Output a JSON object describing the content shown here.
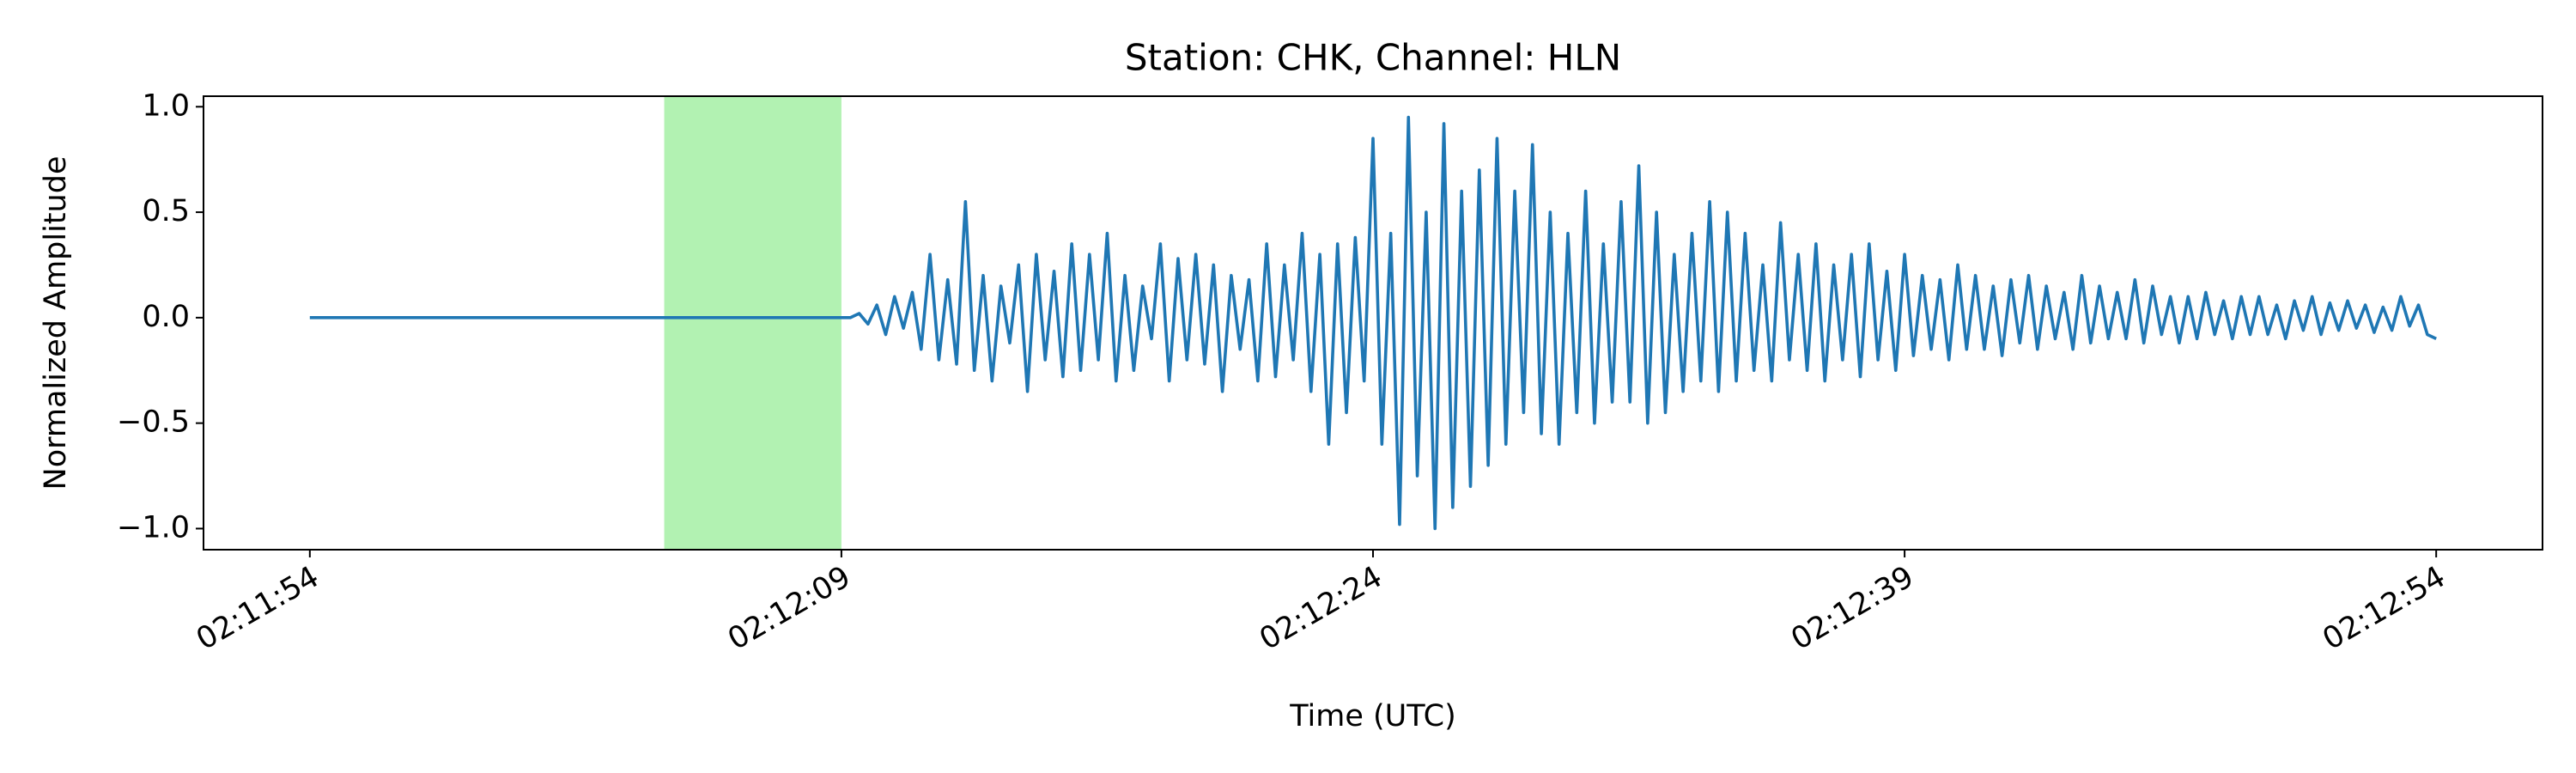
{
  "chart_data": {
    "type": "line",
    "title": "Station: CHK, Channel: HLN",
    "x_label": "Time (UTC)",
    "y_label": "Normalized Amplitude",
    "color": "#1f77b4",
    "span": {
      "xmin": 7924,
      "xmax": 7929,
      "color": "#b2f2b2"
    },
    "xlim": [
      7911,
      7977
    ],
    "xticks": [
      {
        "value": 7914,
        "label": "02:11:54"
      },
      {
        "value": 7929,
        "label": "02:12:09"
      },
      {
        "value": 7944,
        "label": "02:12:24"
      },
      {
        "value": 7959,
        "label": "02:12:39"
      },
      {
        "value": 7974,
        "label": "02:12:54"
      }
    ],
    "ylim": [
      -1.1,
      1.05
    ],
    "yticks": [
      {
        "value": -1,
        "label": "−1.0"
      },
      {
        "value": -0.5,
        "label": "−0.5"
      },
      {
        "value": 0,
        "label": "0.0"
      },
      0.5,
      {
        "value": 1,
        "label": "1.0"
      }
    ],
    "grid": false,
    "x": [
      7914,
      7914.25,
      7914.5,
      7914.75,
      7915,
      7915.25,
      7915.5,
      7915.75,
      7916,
      7916.25,
      7916.5,
      7916.75,
      7917,
      7917.25,
      7917.5,
      7917.75,
      7918,
      7918.25,
      7918.5,
      7918.75,
      7919,
      7919.25,
      7919.5,
      7919.75,
      7920,
      7920.25,
      7920.5,
      7920.75,
      7921,
      7921.25,
      7921.5,
      7921.75,
      7922,
      7922.25,
      7922.5,
      7922.75,
      7923,
      7923.25,
      7923.5,
      7923.75,
      7924,
      7924.25,
      7924.5,
      7924.75,
      7925,
      7925.25,
      7925.5,
      7925.75,
      7926,
      7926.25,
      7926.5,
      7926.75,
      7927,
      7927.25,
      7927.5,
      7927.75,
      7928,
      7928.25,
      7928.5,
      7928.75,
      7929,
      7929.25,
      7929.5,
      7929.75,
      7930,
      7930.25,
      7930.5,
      7930.75,
      7931,
      7931.25,
      7931.5,
      7931.75,
      7932,
      7932.25,
      7932.5,
      7932.75,
      7933,
      7933.25,
      7933.5,
      7933.75,
      7934,
      7934.25,
      7934.5,
      7934.75,
      7935,
      7935.25,
      7935.5,
      7935.75,
      7936,
      7936.25,
      7936.5,
      7936.75,
      7937,
      7937.25,
      7937.5,
      7937.75,
      7938,
      7938.25,
      7938.5,
      7938.75,
      7939,
      7939.25,
      7939.5,
      7939.75,
      7940,
      7940.25,
      7940.5,
      7940.75,
      7941,
      7941.25,
      7941.5,
      7941.75,
      7942,
      7942.25,
      7942.5,
      7942.75,
      7943,
      7943.25,
      7943.5,
      7943.75,
      7944,
      7944.25,
      7944.5,
      7944.75,
      7945,
      7945.25,
      7945.5,
      7945.75,
      7946,
      7946.25,
      7946.5,
      7946.75,
      7947,
      7947.25,
      7947.5,
      7947.75,
      7948,
      7948.25,
      7948.5,
      7948.75,
      7949,
      7949.25,
      7949.5,
      7949.75,
      7950,
      7950.25,
      7950.5,
      7950.75,
      7951,
      7951.25,
      7951.5,
      7951.75,
      7952,
      7952.25,
      7952.5,
      7952.75,
      7953,
      7953.25,
      7953.5,
      7953.75,
      7954,
      7954.25,
      7954.5,
      7954.75,
      7955,
      7955.25,
      7955.5,
      7955.75,
      7956,
      7956.25,
      7956.5,
      7956.75,
      7957,
      7957.25,
      7957.5,
      7957.75,
      7958,
      7958.25,
      7958.5,
      7958.75,
      7959,
      7959.25,
      7959.5,
      7959.75,
      7960,
      7960.25,
      7960.5,
      7960.75,
      7961,
      7961.25,
      7961.5,
      7961.75,
      7962,
      7962.25,
      7962.5,
      7962.75,
      7963,
      7963.25,
      7963.5,
      7963.75,
      7964,
      7964.25,
      7964.5,
      7964.75,
      7965,
      7965.25,
      7965.5,
      7965.75,
      7966,
      7966.25,
      7966.5,
      7966.75,
      7967,
      7967.25,
      7967.5,
      7967.75,
      7968,
      7968.25,
      7968.5,
      7968.75,
      7969,
      7969.25,
      7969.5,
      7969.75,
      7970,
      7970.25,
      7970.5,
      7970.75,
      7971,
      7971.25,
      7971.5,
      7971.75,
      7972,
      7972.25,
      7972.5,
      7972.75,
      7973,
      7973.25,
      7973.5,
      7973.75,
      7974
    ],
    "values": [
      0,
      0,
      0,
      0,
      0,
      0,
      0,
      0,
      0,
      0,
      0,
      0,
      0,
      0,
      0,
      0,
      0,
      0,
      0,
      0,
      0,
      0,
      0,
      0,
      0,
      0,
      0,
      0,
      0,
      0,
      0,
      0,
      0,
      0,
      0,
      0,
      0,
      0,
      0,
      0,
      0,
      0,
      0,
      0,
      0,
      0,
      0,
      0,
      0,
      0,
      0,
      0,
      0,
      0,
      0,
      0,
      0,
      0,
      0,
      0,
      0,
      0,
      0.02,
      -0.03,
      0.06,
      -0.08,
      0.1,
      -0.05,
      0.12,
      -0.15,
      0.3,
      -0.2,
      0.18,
      -0.22,
      0.55,
      -0.25,
      0.2,
      -0.3,
      0.15,
      -0.12,
      0.25,
      -0.35,
      0.3,
      -0.2,
      0.22,
      -0.28,
      0.35,
      -0.25,
      0.3,
      -0.2,
      0.4,
      -0.3,
      0.2,
      -0.25,
      0.15,
      -0.1,
      0.35,
      -0.3,
      0.28,
      -0.2,
      0.3,
      -0.22,
      0.25,
      -0.35,
      0.2,
      -0.15,
      0.18,
      -0.3,
      0.35,
      -0.28,
      0.25,
      -0.2,
      0.4,
      -0.35,
      0.3,
      -0.6,
      0.35,
      -0.45,
      0.38,
      -0.3,
      0.85,
      -0.6,
      0.4,
      -0.98,
      0.95,
      -0.75,
      0.5,
      -1.0,
      0.92,
      -0.9,
      0.6,
      -0.8,
      0.7,
      -0.7,
      0.85,
      -0.6,
      0.6,
      -0.45,
      0.82,
      -0.55,
      0.5,
      -0.6,
      0.4,
      -0.45,
      0.6,
      -0.5,
      0.35,
      -0.4,
      0.55,
      -0.4,
      0.72,
      -0.5,
      0.5,
      -0.45,
      0.3,
      -0.35,
      0.4,
      -0.3,
      0.55,
      -0.35,
      0.5,
      -0.3,
      0.4,
      -0.25,
      0.25,
      -0.3,
      0.45,
      -0.2,
      0.3,
      -0.25,
      0.35,
      -0.3,
      0.25,
      -0.2,
      0.3,
      -0.28,
      0.35,
      -0.2,
      0.22,
      -0.25,
      0.3,
      -0.18,
      0.2,
      -0.15,
      0.18,
      -0.2,
      0.25,
      -0.15,
      0.2,
      -0.15,
      0.15,
      -0.18,
      0.18,
      -0.12,
      0.2,
      -0.15,
      0.15,
      -0.1,
      0.12,
      -0.15,
      0.2,
      -0.12,
      0.15,
      -0.1,
      0.12,
      -0.1,
      0.18,
      -0.12,
      0.15,
      -0.08,
      0.1,
      -0.12,
      0.1,
      -0.1,
      0.12,
      -0.08,
      0.08,
      -0.1,
      0.1,
      -0.08,
      0.1,
      -0.08,
      0.06,
      -0.1,
      0.08,
      -0.06,
      0.1,
      -0.08,
      0.07,
      -0.06,
      0.08,
      -0.05,
      0.06,
      -0.07,
      0.05,
      -0.06,
      0.1,
      -0.04,
      0.06,
      -0.08,
      -0.1
    ]
  }
}
